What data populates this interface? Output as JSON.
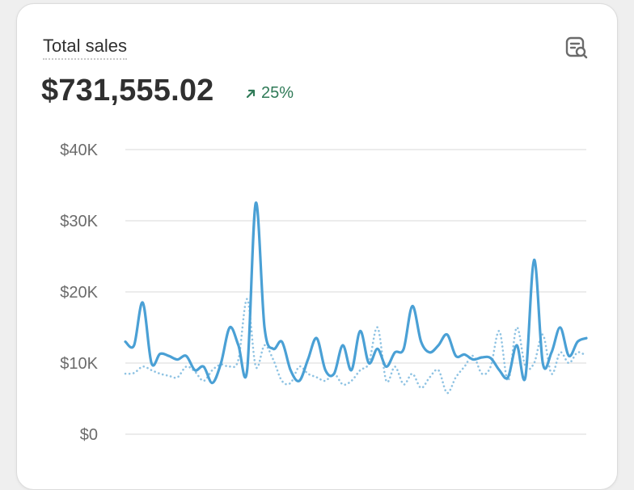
{
  "card": {
    "title": "Total sales",
    "amount": "$731,555.02",
    "change": "25%",
    "change_direction": "up",
    "change_color": "#2f7a57",
    "report_icon": "report-search-icon"
  },
  "chart_data": {
    "type": "line",
    "yticks": [
      "$40K",
      "$30K",
      "$20K",
      "$10K",
      "$0"
    ],
    "ylim": [
      0,
      40000
    ],
    "grid": true,
    "series": [
      {
        "style": "solid",
        "color": "#4aa0d5",
        "values": [
          13000,
          12500,
          18500,
          10000,
          11300,
          11000,
          10500,
          11000,
          9000,
          9500,
          7200,
          10000,
          15000,
          12500,
          9000,
          32500,
          15000,
          12000,
          13000,
          9000,
          7500,
          10500,
          13500,
          9000,
          8500,
          12500,
          9000,
          14500,
          10000,
          12000,
          9500,
          11500,
          12000,
          18000,
          13000,
          11500,
          12500,
          14000,
          11000,
          11200,
          10500,
          10800,
          10700,
          9000,
          8000,
          12500,
          8000,
          24500,
          10000,
          11500,
          15000,
          11000,
          13000,
          13500
        ]
      },
      {
        "style": "dotted",
        "color": "#8fc3e3",
        "values": [
          8500,
          8600,
          9500,
          9000,
          8500,
          8200,
          8000,
          9500,
          8800,
          7500,
          9000,
          9800,
          9500,
          10500,
          19000,
          9500,
          12500,
          10500,
          7500,
          7200,
          9500,
          8500,
          8000,
          7500,
          8500,
          7000,
          7500,
          9000,
          10000,
          15000,
          7500,
          9500,
          7000,
          8500,
          6500,
          8000,
          9000,
          5800,
          8000,
          9500,
          11000,
          8500,
          9500,
          14500,
          7500,
          15000,
          9500,
          10000,
          14000,
          8500,
          11500,
          10000,
          11500,
          11000
        ]
      }
    ]
  }
}
